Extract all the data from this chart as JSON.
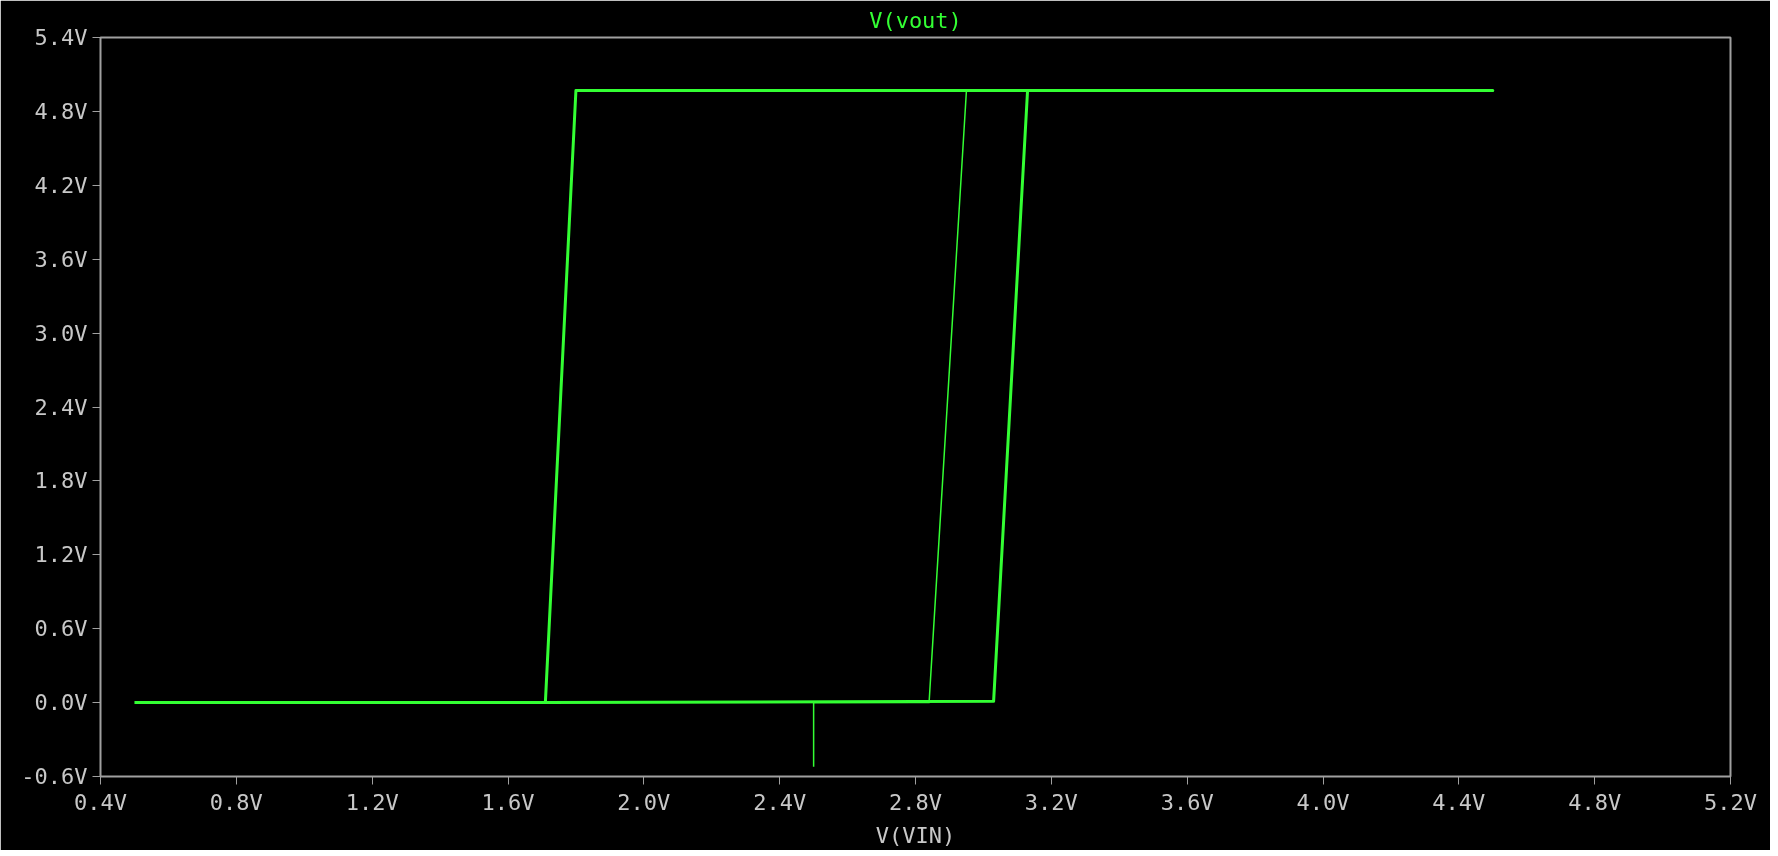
{
  "chart_data": {
    "type": "line",
    "title": "V(vout)",
    "xlabel": "V(VIN)",
    "xlim": [
      0.4,
      5.2
    ],
    "xticks": [
      {
        "value": 0.4,
        "label": "0.4V"
      },
      {
        "value": 0.8,
        "label": "0.8V"
      },
      {
        "value": 1.2,
        "label": "1.2V"
      },
      {
        "value": 1.6,
        "label": "1.6V"
      },
      {
        "value": 2.0,
        "label": "2.0V"
      },
      {
        "value": 2.4,
        "label": "2.4V"
      },
      {
        "value": 2.8,
        "label": "2.8V"
      },
      {
        "value": 3.2,
        "label": "3.2V"
      },
      {
        "value": 3.6,
        "label": "3.6V"
      },
      {
        "value": 4.0,
        "label": "4.0V"
      },
      {
        "value": 4.4,
        "label": "4.4V"
      },
      {
        "value": 4.8,
        "label": "4.8V"
      },
      {
        "value": 5.2,
        "label": "5.2V"
      }
    ],
    "ylim": [
      -0.6,
      5.4
    ],
    "yticks": [
      {
        "value": -0.6,
        "label": "-0.6V"
      },
      {
        "value": 0,
        "label": "0.0V"
      },
      {
        "value": 0.6,
        "label": "0.6V"
      },
      {
        "value": 1.2,
        "label": "1.2V"
      },
      {
        "value": 1.8,
        "label": "1.8V"
      },
      {
        "value": 2.4,
        "label": "2.4V"
      },
      {
        "value": 3.0,
        "label": "3.0V"
      },
      {
        "value": 3.6,
        "label": "3.6V"
      },
      {
        "value": 4.2,
        "label": "4.2V"
      },
      {
        "value": 4.8,
        "label": "4.8V"
      },
      {
        "value": 5.4,
        "label": "5.4V"
      }
    ],
    "grid": false,
    "series": [
      {
        "color": "#33ff33",
        "x": [
          0.5,
          1.71,
          1.8,
          4.5,
          3.13,
          3.03,
          1.71
        ],
        "values": [
          0,
          0,
          4.97,
          4.97,
          4.97,
          0.01,
          0
        ]
      },
      {
        "color": "#33ff33",
        "x": [
          2.5,
          2.5,
          2.84,
          2.95
        ],
        "values": [
          -0.52,
          0,
          0,
          4.97
        ]
      }
    ]
  }
}
